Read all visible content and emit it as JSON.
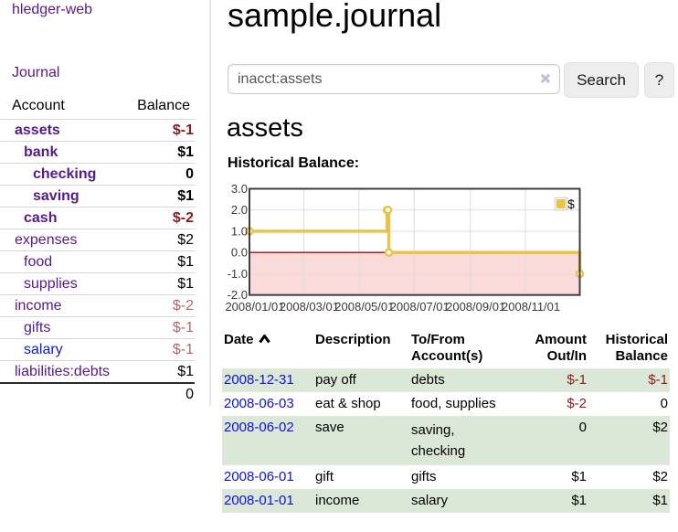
{
  "sidebar": {
    "brand": "hledger-web",
    "nav_journal": "Journal",
    "table": {
      "headers": {
        "account": "Account",
        "balance": "Balance"
      },
      "rows": [
        {
          "account": "assets",
          "depth": 1,
          "bold": true,
          "balance": "$-1",
          "neg": "strong"
        },
        {
          "account": "bank",
          "depth": 2,
          "bold": true,
          "balance": "$1",
          "neg": ""
        },
        {
          "account": "checking",
          "depth": 3,
          "bold": true,
          "balance": "0",
          "neg": ""
        },
        {
          "account": "saving",
          "depth": 3,
          "bold": true,
          "balance": "$1",
          "neg": ""
        },
        {
          "account": "cash",
          "depth": 2,
          "bold": true,
          "balance": "$-2",
          "neg": "strong"
        },
        {
          "account": "expenses",
          "depth": 1,
          "bold": false,
          "balance": "$2",
          "neg": ""
        },
        {
          "account": "food",
          "depth": 2,
          "bold": false,
          "balance": "$1",
          "neg": ""
        },
        {
          "account": "supplies",
          "depth": 2,
          "bold": false,
          "balance": "$1",
          "neg": ""
        },
        {
          "account": "income",
          "depth": 1,
          "bold": false,
          "balance": "$-2",
          "neg": "muted"
        },
        {
          "account": "gifts",
          "depth": 2,
          "bold": false,
          "balance": "$-1",
          "neg": "muted"
        },
        {
          "account": "salary",
          "depth": 2,
          "bold": false,
          "balance": "$-1",
          "neg": "muted",
          "unvisited": true
        },
        {
          "account": "liabilities:debts",
          "depth": 1,
          "bold": false,
          "balance": "$1",
          "neg": ""
        }
      ],
      "total": "0"
    }
  },
  "main": {
    "title": "sample.journal",
    "search": {
      "value": "inacct:assets",
      "clear_icon": "✕",
      "search_button": "Search",
      "help_button": "?"
    },
    "account_heading": "assets",
    "chart_label": "Historical Balance:"
  },
  "chart_data": {
    "type": "line",
    "title": "Historical Balance:",
    "steps": true,
    "series": [
      {
        "name": "$",
        "color": "#e9c449",
        "points": [
          [
            "2008-01-01",
            1
          ],
          [
            "2008-06-01",
            2
          ],
          [
            "2008-06-02",
            2
          ],
          [
            "2008-06-03",
            0
          ],
          [
            "2008-12-31",
            -1
          ]
        ]
      }
    ],
    "xlim": [
      "2008-01-01",
      "2008-12-31"
    ],
    "ylim": [
      -2,
      3
    ],
    "y_ticks": [
      "3.0",
      "2.0",
      "1.0",
      "0.0",
      "-1.0",
      "-2.0"
    ],
    "x_ticks": [
      {
        "date": "2008-01-01",
        "label": "2008/01/01"
      },
      {
        "date": "2008-03-01",
        "label": "2008/03/01"
      },
      {
        "date": "2008-05-01",
        "label": "2008/05/01"
      },
      {
        "date": "2008-07-01",
        "label": "2008/07/01"
      },
      {
        "date": "2008-09-01",
        "label": "2008/09/01"
      },
      {
        "date": "2008-11-01",
        "label": "2008/11/01"
      }
    ],
    "grid": true,
    "legend_position": "top-right",
    "negative_region_color": "#fbdada",
    "zero_line_color": "#9e0e0e"
  },
  "register": {
    "headers": {
      "date": "Date",
      "description": "Description",
      "accounts": "To/From Account(s)",
      "amount": "Amount Out/In",
      "balance": "Historical Balance"
    },
    "sort": {
      "column": "date",
      "direction": "ascending"
    },
    "rows": [
      {
        "date": "2008-12-31",
        "description": "pay off",
        "accounts": "debts",
        "amount": "$-1",
        "amount_neg": true,
        "balance": "$-1",
        "balance_neg": true,
        "shade": "green"
      },
      {
        "date": "2008-06-03",
        "description": "eat & shop",
        "accounts": "food, supplies",
        "amount": "$-2",
        "amount_neg": true,
        "balance": "0",
        "balance_neg": false,
        "shade": "white"
      },
      {
        "date": "2008-06-02",
        "description": "save",
        "accounts": "saving, checking",
        "amount": "0",
        "amount_neg": false,
        "balance": "$2",
        "balance_neg": false,
        "shade": "green"
      },
      {
        "date": "2008-06-01",
        "description": "gift",
        "accounts": "gifts",
        "amount": "$1",
        "amount_neg": false,
        "balance": "$2",
        "balance_neg": false,
        "shade": "white"
      },
      {
        "date": "2008-01-01",
        "description": "income",
        "accounts": "salary",
        "amount": "$1",
        "amount_neg": false,
        "balance": "$1",
        "balance_neg": false,
        "shade": "green"
      }
    ]
  }
}
